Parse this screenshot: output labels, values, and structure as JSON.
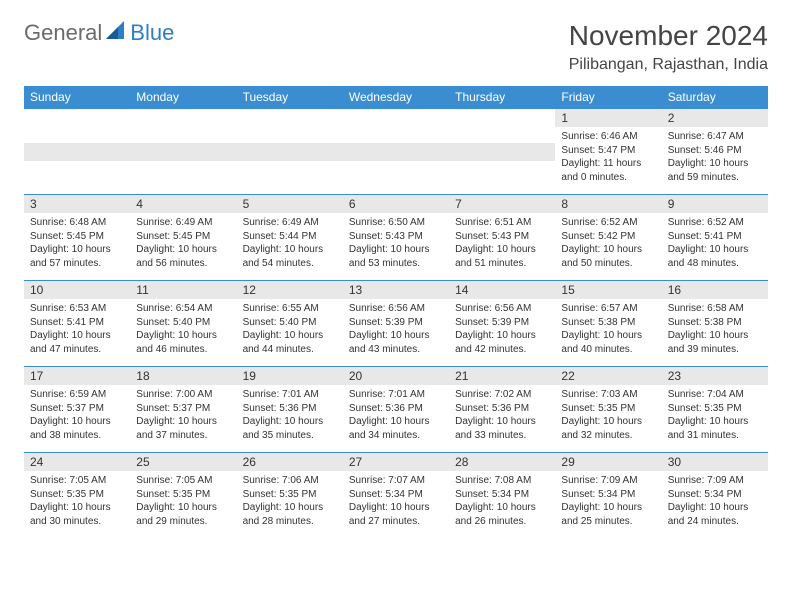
{
  "logo": {
    "general": "General",
    "blue": "Blue"
  },
  "title": "November 2024",
  "location": "Pilibangan, Rajasthan, India",
  "weekdays": [
    "Sunday",
    "Monday",
    "Tuesday",
    "Wednesday",
    "Thursday",
    "Friday",
    "Saturday"
  ],
  "colors": {
    "header_bg": "#3b8dd1",
    "header_text": "#ffffff",
    "daynum_bg": "#e8e8e8",
    "border": "#3b8dd1",
    "logo_gray": "#6b6b6b",
    "logo_blue": "#2d7fc5"
  },
  "weeks": [
    [
      null,
      null,
      null,
      null,
      null,
      {
        "n": "1",
        "sr": "Sunrise: 6:46 AM",
        "ss": "Sunset: 5:47 PM",
        "dl": "Daylight: 11 hours and 0 minutes."
      },
      {
        "n": "2",
        "sr": "Sunrise: 6:47 AM",
        "ss": "Sunset: 5:46 PM",
        "dl": "Daylight: 10 hours and 59 minutes."
      }
    ],
    [
      {
        "n": "3",
        "sr": "Sunrise: 6:48 AM",
        "ss": "Sunset: 5:45 PM",
        "dl": "Daylight: 10 hours and 57 minutes."
      },
      {
        "n": "4",
        "sr": "Sunrise: 6:49 AM",
        "ss": "Sunset: 5:45 PM",
        "dl": "Daylight: 10 hours and 56 minutes."
      },
      {
        "n": "5",
        "sr": "Sunrise: 6:49 AM",
        "ss": "Sunset: 5:44 PM",
        "dl": "Daylight: 10 hours and 54 minutes."
      },
      {
        "n": "6",
        "sr": "Sunrise: 6:50 AM",
        "ss": "Sunset: 5:43 PM",
        "dl": "Daylight: 10 hours and 53 minutes."
      },
      {
        "n": "7",
        "sr": "Sunrise: 6:51 AM",
        "ss": "Sunset: 5:43 PM",
        "dl": "Daylight: 10 hours and 51 minutes."
      },
      {
        "n": "8",
        "sr": "Sunrise: 6:52 AM",
        "ss": "Sunset: 5:42 PM",
        "dl": "Daylight: 10 hours and 50 minutes."
      },
      {
        "n": "9",
        "sr": "Sunrise: 6:52 AM",
        "ss": "Sunset: 5:41 PM",
        "dl": "Daylight: 10 hours and 48 minutes."
      }
    ],
    [
      {
        "n": "10",
        "sr": "Sunrise: 6:53 AM",
        "ss": "Sunset: 5:41 PM",
        "dl": "Daylight: 10 hours and 47 minutes."
      },
      {
        "n": "11",
        "sr": "Sunrise: 6:54 AM",
        "ss": "Sunset: 5:40 PM",
        "dl": "Daylight: 10 hours and 46 minutes."
      },
      {
        "n": "12",
        "sr": "Sunrise: 6:55 AM",
        "ss": "Sunset: 5:40 PM",
        "dl": "Daylight: 10 hours and 44 minutes."
      },
      {
        "n": "13",
        "sr": "Sunrise: 6:56 AM",
        "ss": "Sunset: 5:39 PM",
        "dl": "Daylight: 10 hours and 43 minutes."
      },
      {
        "n": "14",
        "sr": "Sunrise: 6:56 AM",
        "ss": "Sunset: 5:39 PM",
        "dl": "Daylight: 10 hours and 42 minutes."
      },
      {
        "n": "15",
        "sr": "Sunrise: 6:57 AM",
        "ss": "Sunset: 5:38 PM",
        "dl": "Daylight: 10 hours and 40 minutes."
      },
      {
        "n": "16",
        "sr": "Sunrise: 6:58 AM",
        "ss": "Sunset: 5:38 PM",
        "dl": "Daylight: 10 hours and 39 minutes."
      }
    ],
    [
      {
        "n": "17",
        "sr": "Sunrise: 6:59 AM",
        "ss": "Sunset: 5:37 PM",
        "dl": "Daylight: 10 hours and 38 minutes."
      },
      {
        "n": "18",
        "sr": "Sunrise: 7:00 AM",
        "ss": "Sunset: 5:37 PM",
        "dl": "Daylight: 10 hours and 37 minutes."
      },
      {
        "n": "19",
        "sr": "Sunrise: 7:01 AM",
        "ss": "Sunset: 5:36 PM",
        "dl": "Daylight: 10 hours and 35 minutes."
      },
      {
        "n": "20",
        "sr": "Sunrise: 7:01 AM",
        "ss": "Sunset: 5:36 PM",
        "dl": "Daylight: 10 hours and 34 minutes."
      },
      {
        "n": "21",
        "sr": "Sunrise: 7:02 AM",
        "ss": "Sunset: 5:36 PM",
        "dl": "Daylight: 10 hours and 33 minutes."
      },
      {
        "n": "22",
        "sr": "Sunrise: 7:03 AM",
        "ss": "Sunset: 5:35 PM",
        "dl": "Daylight: 10 hours and 32 minutes."
      },
      {
        "n": "23",
        "sr": "Sunrise: 7:04 AM",
        "ss": "Sunset: 5:35 PM",
        "dl": "Daylight: 10 hours and 31 minutes."
      }
    ],
    [
      {
        "n": "24",
        "sr": "Sunrise: 7:05 AM",
        "ss": "Sunset: 5:35 PM",
        "dl": "Daylight: 10 hours and 30 minutes."
      },
      {
        "n": "25",
        "sr": "Sunrise: 7:05 AM",
        "ss": "Sunset: 5:35 PM",
        "dl": "Daylight: 10 hours and 29 minutes."
      },
      {
        "n": "26",
        "sr": "Sunrise: 7:06 AM",
        "ss": "Sunset: 5:35 PM",
        "dl": "Daylight: 10 hours and 28 minutes."
      },
      {
        "n": "27",
        "sr": "Sunrise: 7:07 AM",
        "ss": "Sunset: 5:34 PM",
        "dl": "Daylight: 10 hours and 27 minutes."
      },
      {
        "n": "28",
        "sr": "Sunrise: 7:08 AM",
        "ss": "Sunset: 5:34 PM",
        "dl": "Daylight: 10 hours and 26 minutes."
      },
      {
        "n": "29",
        "sr": "Sunrise: 7:09 AM",
        "ss": "Sunset: 5:34 PM",
        "dl": "Daylight: 10 hours and 25 minutes."
      },
      {
        "n": "30",
        "sr": "Sunrise: 7:09 AM",
        "ss": "Sunset: 5:34 PM",
        "dl": "Daylight: 10 hours and 24 minutes."
      }
    ]
  ]
}
